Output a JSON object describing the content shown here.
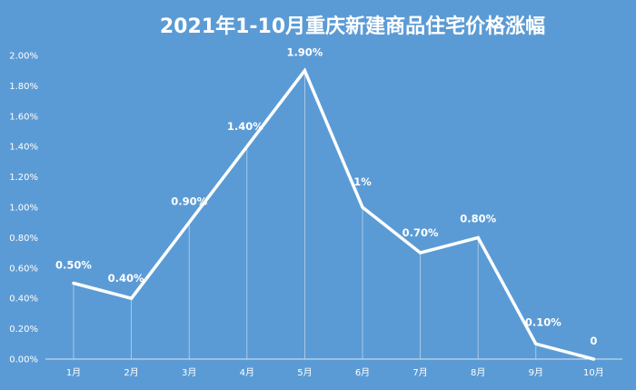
{
  "chart_data": {
    "type": "line",
    "title": "2021年1-10月重庆新建商品住宅价格涨幅",
    "xlabel": "",
    "ylabel": "",
    "categories": [
      "1月",
      "2月",
      "3月",
      "4月",
      "5月",
      "6月",
      "7月",
      "8月",
      "9月",
      "10月"
    ],
    "values": [
      0.5,
      0.4,
      0.9,
      1.4,
      1.9,
      1.0,
      0.7,
      0.8,
      0.1,
      0
    ],
    "data_labels": [
      "0.50%",
      "0.40%",
      "0.90%",
      "1.40%",
      "1.90%",
      "1%",
      "0.70%",
      "0.80%",
      "0.10%",
      "0"
    ],
    "ylim": [
      0,
      2.0
    ],
    "y_ticks": [
      "0.00%",
      "0.20%",
      "0.40%",
      "0.60%",
      "0.80%",
      "1.00%",
      "1.20%",
      "1.40%",
      "1.60%",
      "1.80%",
      "2.00%"
    ],
    "grid": false,
    "legend": "none",
    "colors": {
      "background": "#5b9bd5",
      "line": "#ffffff",
      "leader": "#c9ddf0",
      "text": "#ffffff"
    }
  }
}
